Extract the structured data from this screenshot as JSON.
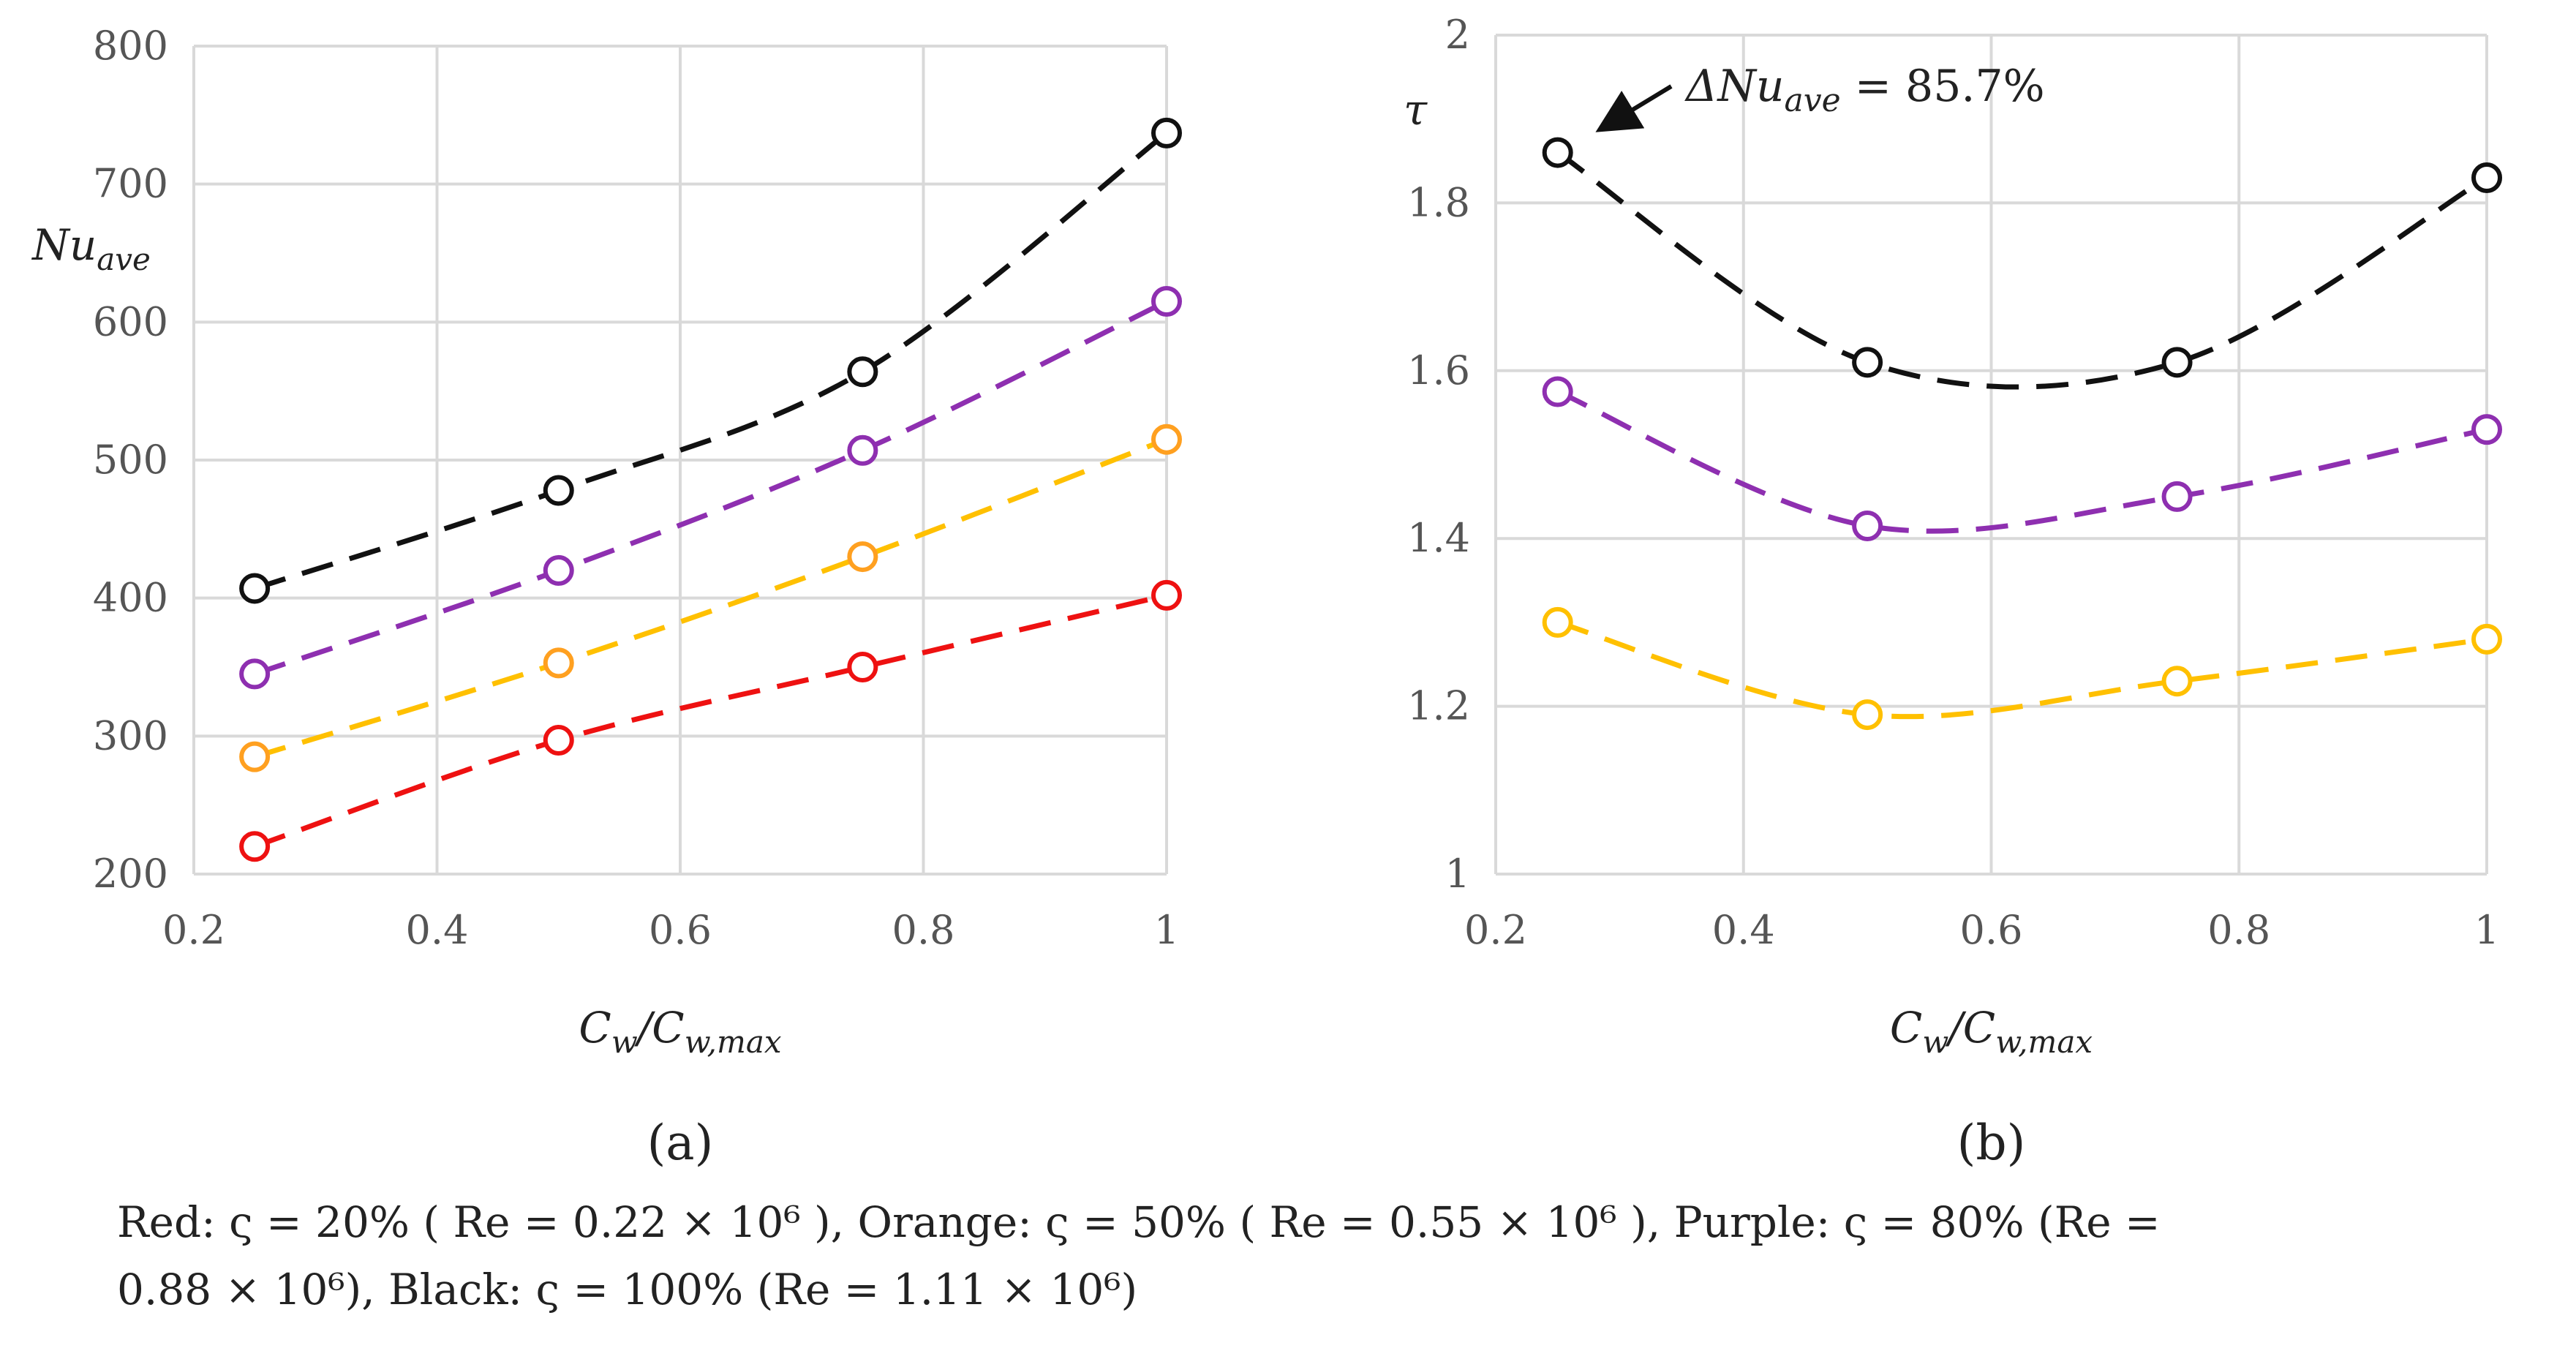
{
  "chart_data": [
    {
      "type": "line",
      "panel_label": "(a)",
      "ylabel": "Nu_ave",
      "xlabel": "C_w/C_w,max",
      "xlim": [
        0.2,
        1.0
      ],
      "ylim": [
        200,
        800
      ],
      "x_ticks": [
        "0.2",
        "0.4",
        "0.6",
        "0.8",
        "1"
      ],
      "y_ticks": [
        "200",
        "300",
        "400",
        "500",
        "600",
        "700",
        "800"
      ],
      "grid": true,
      "x": [
        0.25,
        0.5,
        0.75,
        1.0
      ],
      "series": [
        {
          "name": "Red",
          "color": "#ee1111",
          "values": [
            220,
            297,
            350,
            402
          ]
        },
        {
          "name": "Orange",
          "color": "#ffa020",
          "line_color": "#ffc000",
          "values": [
            285,
            353,
            430,
            515
          ]
        },
        {
          "name": "Purple",
          "color": "#8e2fb0",
          "values": [
            345,
            420,
            507,
            615
          ]
        },
        {
          "name": "Black",
          "color": "#111111",
          "values": [
            407,
            478,
            564,
            737
          ]
        }
      ]
    },
    {
      "type": "line",
      "panel_label": "(b)",
      "ylabel": "τ",
      "xlabel": "C_w/C_w,max",
      "xlim": [
        0.2,
        1.0
      ],
      "ylim": [
        1.0,
        2.0
      ],
      "x_ticks": [
        "0.2",
        "0.4",
        "0.6",
        "0.8",
        "1"
      ],
      "y_ticks": [
        "1",
        "1.2",
        "1.4",
        "1.6",
        "1.8",
        "2"
      ],
      "grid": true,
      "x": [
        0.25,
        0.5,
        0.75,
        1.0
      ],
      "annotation": "ΔNu_ave = 85.7%",
      "series": [
        {
          "name": "Orange",
          "color": "#ffc000",
          "values": [
            1.3,
            1.19,
            1.23,
            1.28
          ]
        },
        {
          "name": "Purple",
          "color": "#8e2fb0",
          "values": [
            1.575,
            1.415,
            1.45,
            1.53
          ]
        },
        {
          "name": "Black",
          "color": "#111111",
          "values": [
            1.86,
            1.61,
            1.61,
            1.83
          ]
        }
      ]
    }
  ],
  "caption": {
    "line1": "Red:  ς = 20%  ( Re = 0.22 × 10⁶ ),  Orange:  ς = 50%  ( Re = 0.55 × 10⁶ ),  Purple:  ς = 80% (Re =",
    "line2": "0.88 × 10⁶), Black:  ς = 100% (Re = 1.11 × 10⁶)"
  }
}
